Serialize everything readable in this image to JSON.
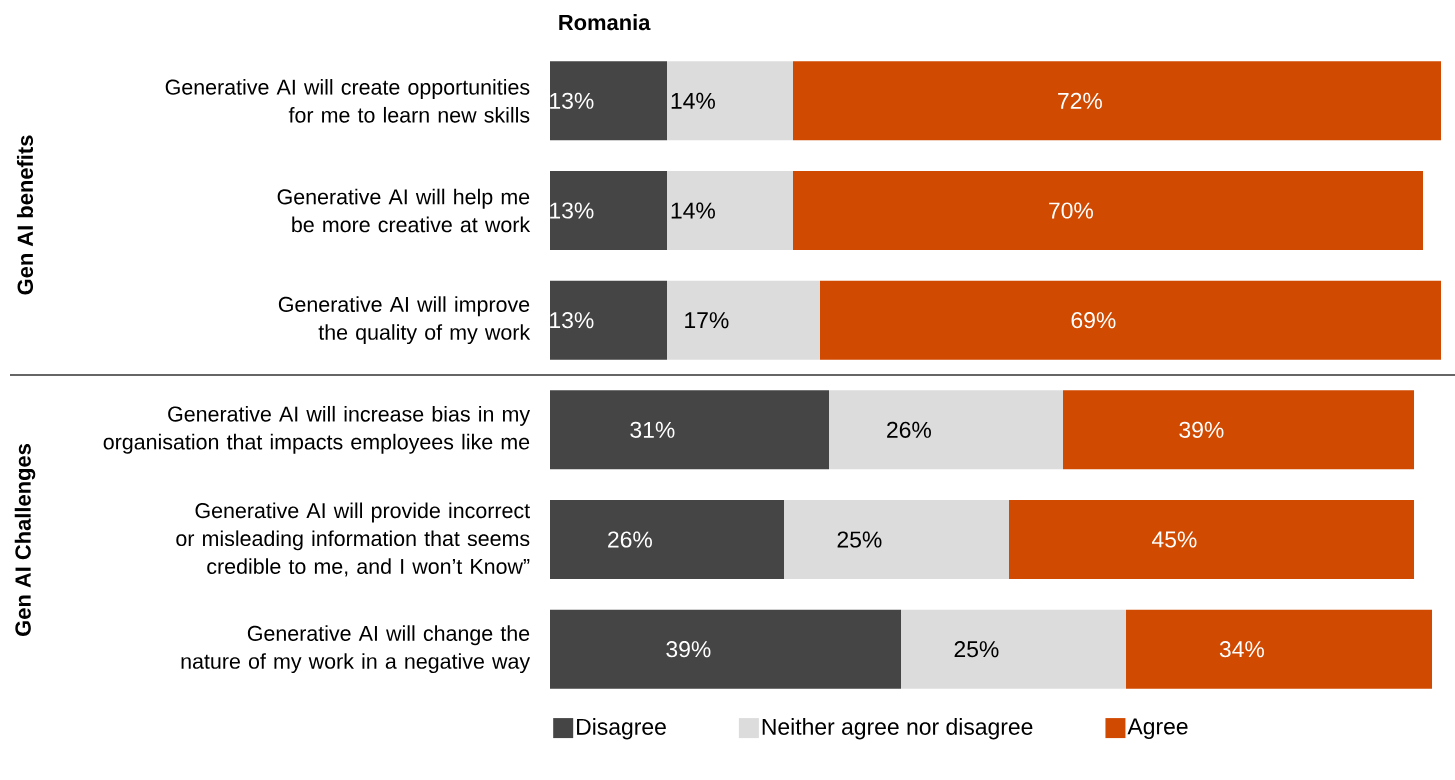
{
  "chart_data": {
    "type": "bar",
    "orientation": "horizontal",
    "stacked": true,
    "title": "Romania",
    "categories": [
      "Generative AI will create opportunities for me to learn new skills",
      "Generative AI will help me be more creative at work",
      "Generative AI will improve the quality of my work",
      "Generative AI will increase bias in my organisation that impacts employees like me",
      "Generative AI will provide incorrect or misleading information that seems credible to me, and I won’t Know”",
      "Generative AI will change the nature of my work in a negative way"
    ],
    "series": [
      {
        "name": "Disagree",
        "color": "#454545",
        "values": [
          13,
          13,
          13,
          31,
          26,
          39
        ],
        "value_labels": [
          "13%",
          "13%",
          "13%",
          "31%",
          "26%",
          "39%"
        ]
      },
      {
        "name": "Neither agree nor disagree",
        "color": "#dcdcdc",
        "values": [
          14,
          14,
          17,
          26,
          25,
          25
        ],
        "value_labels": [
          "14%",
          "14%",
          "17%",
          "26%",
          "25%",
          "25%"
        ]
      },
      {
        "name": "Agree",
        "color": "#d04a02",
        "values": [
          72,
          70,
          69,
          39,
          45,
          34
        ],
        "value_labels": [
          "72%",
          "70%",
          "69%",
          "39%",
          "45%",
          "34%"
        ]
      }
    ],
    "xlim": [
      0,
      100
    ],
    "tick_labels": "y",
    "legend": "bottom",
    "grid": false,
    "annotations": [
      "Gen AI benefits",
      "Gen AI Challenges"
    ]
  }
}
